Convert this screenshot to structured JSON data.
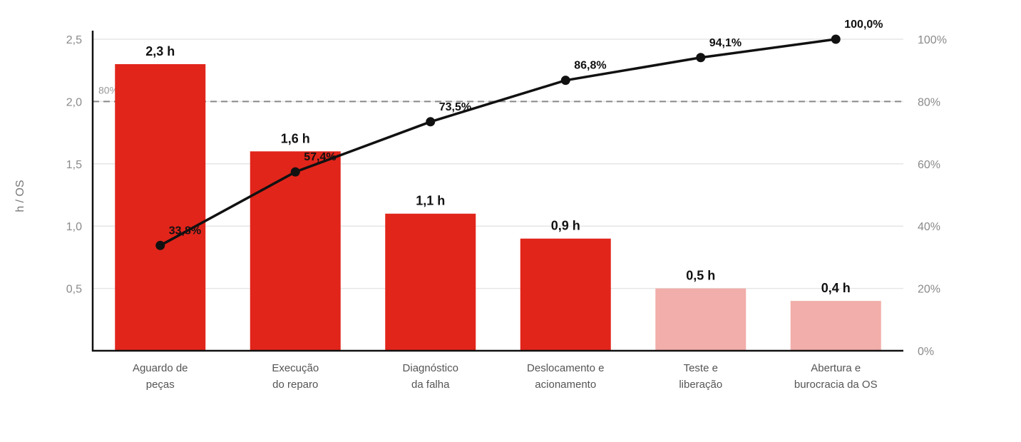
{
  "chart_data": {
    "type": "bar",
    "categories": [
      [
        "Aguardo de",
        "peças"
      ],
      [
        "Execução",
        "do reparo"
      ],
      [
        "Diagnóstico",
        "da falha"
      ],
      [
        "Deslocamento e",
        "acionamento"
      ],
      [
        "Teste e",
        "liberação"
      ],
      [
        "Abertura e",
        "burocracia da OS"
      ]
    ],
    "values": [
      2.3,
      1.6,
      1.1,
      0.9,
      0.5,
      0.4
    ],
    "value_labels": [
      "2,3 h",
      "1,6 h",
      "1,1 h",
      "0,9 h",
      "0,5 h",
      "0,4 h"
    ],
    "bar_colors": [
      "#e1251b",
      "#e1251b",
      "#e1251b",
      "#e1251b",
      "#f2aeaa",
      "#f2aeaa"
    ],
    "cumulative": [
      33.8,
      57.4,
      73.5,
      86.8,
      94.1,
      100.0
    ],
    "cumulative_labels": [
      "33,8%",
      "57,4%",
      "73,5%",
      "86,8%",
      "94,1%",
      "100,0%"
    ],
    "ylabel": "h / OS",
    "ylim": [
      0,
      2.5
    ],
    "y_ticks": [
      0.5,
      1.0,
      1.5,
      2.0,
      2.5
    ],
    "y_tick_labels": [
      "0,5",
      "1,0",
      "1,5",
      "2,0",
      "2,5"
    ],
    "y2lim": [
      0,
      100
    ],
    "y2_ticks": [
      0,
      20,
      40,
      60,
      80,
      100
    ],
    "y2_tick_labels": [
      "0%",
      "20%",
      "40%",
      "60%",
      "80%",
      "100%"
    ],
    "reference_line": {
      "value": 80,
      "label": "80%"
    },
    "grid": true,
    "colors": {
      "line": "#111111",
      "axis": "#111111",
      "grid": "#e6e6e6",
      "reference": "#888888"
    }
  }
}
